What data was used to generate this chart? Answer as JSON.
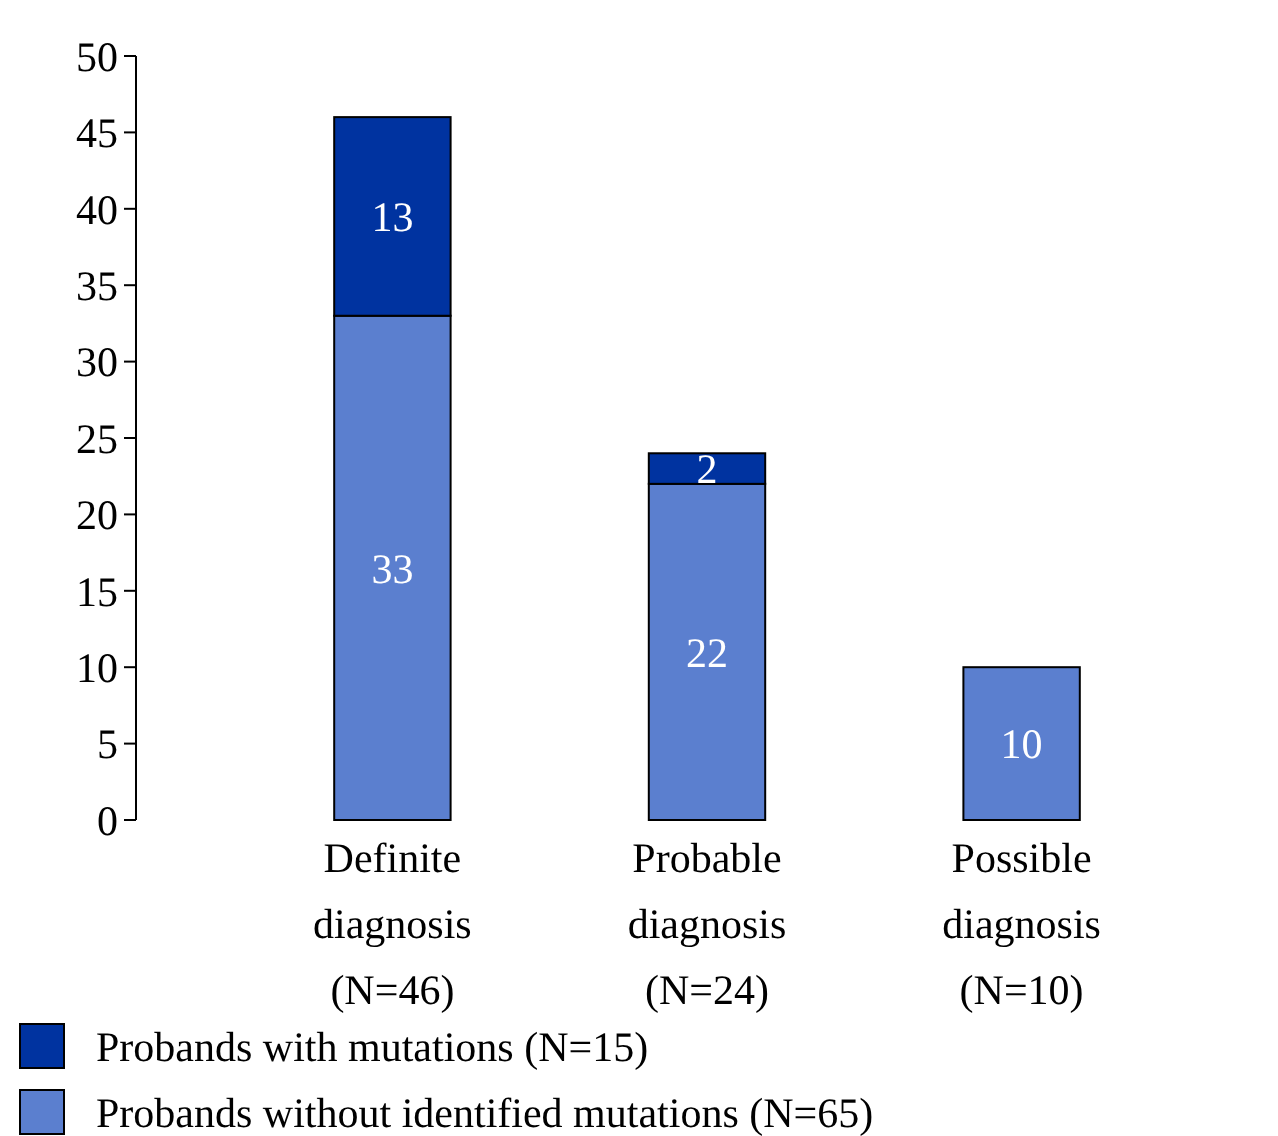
{
  "chart_data": {
    "type": "bar",
    "stacked": true,
    "categories": [
      "Definite\ndiagnosis\n(N=46)",
      "Probable\ndiagnosis\n(N=24)",
      "Possible\ndiagnosis\n(N=10)"
    ],
    "series": [
      {
        "name": "Probands without identified mutations (N=65)",
        "color": "#5b7fcf",
        "values": [
          33,
          22,
          10
        ]
      },
      {
        "name": "Probands with mutations (N=15)",
        "color": "#0033a0",
        "values": [
          13,
          2,
          null
        ]
      }
    ],
    "ylim": [
      0,
      50
    ],
    "yticks": [
      0,
      5,
      10,
      15,
      20,
      25,
      30,
      35,
      40,
      45,
      50
    ],
    "data_labels": true,
    "legend": "bottom",
    "grid": false
  }
}
